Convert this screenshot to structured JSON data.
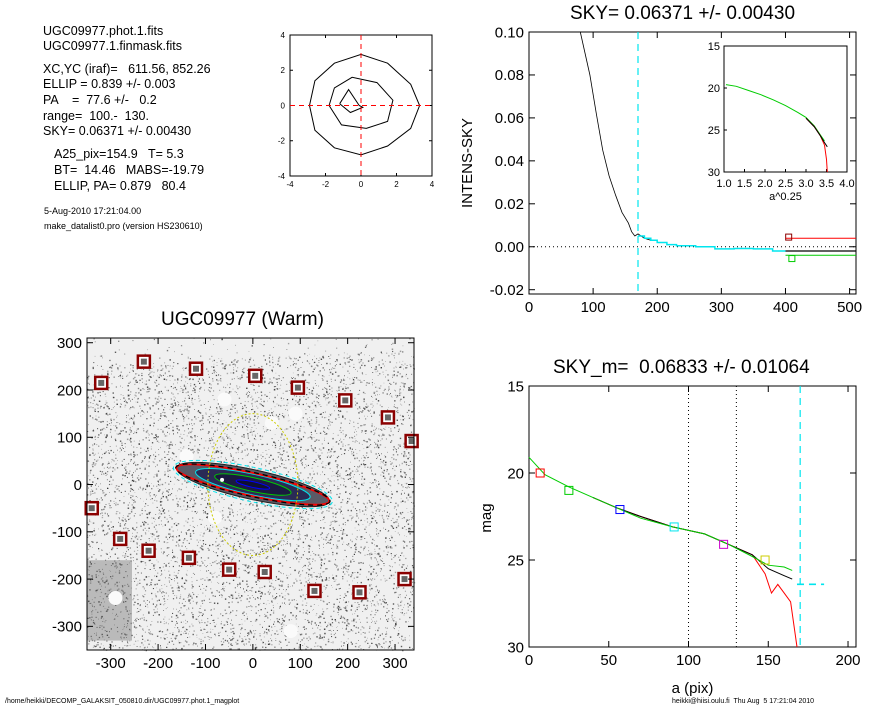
{
  "info": {
    "lines": [
      "UGC09977.phot.1.fits",
      "UGC09977.1.finmask.fits",
      "XC,YC (iraf)=   611.56, 852.26",
      "ELLIP = 0.839 +/- 0.003",
      "PA    =  77.6 +/-   0.2",
      "range=  100.-  130.",
      "SKY= 0.06371 +/- 0.00430",
      "A25_pix=154.9   T= 5.3",
      "BT=  14.46   MABS=-19.79",
      "ELLIP, PA= 0.879   80.4"
    ],
    "timestamp": "5-Aug-2010 17:21:04.00",
    "program": "make_datalist0.pro (version HS230610)"
  },
  "footer": {
    "path": "/home/heikki/DECOMP_GALAKSIT_050810.dir/UGC09977.phot.1_magplot",
    "user": "heikki@hiisi.oulu.fi  Thu Aug  5 17:21:04 2010"
  },
  "colors": {
    "red": "#ff0000",
    "green": "#00cc00",
    "cyan": "#00e5ee",
    "blue": "#0000ff",
    "magenta": "#cc00cc",
    "darkred": "#8b0000",
    "yellow": "#cccc00"
  },
  "chart_data": [
    {
      "id": "contour",
      "type": "line",
      "title": "",
      "xlim": [
        -4,
        4
      ],
      "ylim": [
        -4,
        4
      ],
      "xticks": [
        -4,
        -2,
        0,
        2,
        4
      ],
      "yticks": [
        -4,
        -2,
        0,
        2,
        4
      ],
      "contours": [
        [
          [
            -2.9,
            0
          ],
          [
            -2.6,
            1.4
          ],
          [
            -1.5,
            2.4
          ],
          [
            0,
            2.9
          ],
          [
            1.5,
            2.4
          ],
          [
            2.8,
            1.2
          ],
          [
            3.3,
            0
          ],
          [
            2.8,
            -1.3
          ],
          [
            1.5,
            -2.3
          ],
          [
            0,
            -2.8
          ],
          [
            -1.5,
            -2.4
          ],
          [
            -2.6,
            -1.4
          ],
          [
            -2.9,
            0
          ]
        ],
        [
          [
            -1.8,
            0
          ],
          [
            -1.5,
            1
          ],
          [
            -0.5,
            1.6
          ],
          [
            0.9,
            1.3
          ],
          [
            1.8,
            0.3
          ],
          [
            1.5,
            -0.9
          ],
          [
            0.3,
            -1.3
          ],
          [
            -1.1,
            -1.1
          ],
          [
            -1.8,
            0
          ]
        ],
        [
          [
            -1.2,
            0.1
          ],
          [
            -0.7,
            0.9
          ],
          [
            -0.1,
            0
          ],
          [
            0.1,
            -0.1
          ],
          [
            -0.6,
            -0.4
          ],
          [
            -1.2,
            0.1
          ]
        ]
      ],
      "crosshair": {
        "x": 0,
        "y": 0
      }
    },
    {
      "id": "sky",
      "type": "line",
      "title": "SKY= 0.06371 +/- 0.00430",
      "xlabel": "",
      "ylabel": "INTENS-SKY",
      "xlim": [
        0,
        510
      ],
      "ylim": [
        -0.022,
        0.1
      ],
      "xticks": [
        0,
        100,
        200,
        300,
        400,
        500
      ],
      "yticks": [
        -0.02,
        0,
        0.02,
        0.04,
        0.06,
        0.08,
        0.1
      ],
      "ytick_labels": [
        "-0.02",
        "0.00",
        "0.02",
        "0.04",
        "0.06",
        "0.08",
        "0.10"
      ],
      "vline_x": 170,
      "profile": [
        [
          80,
          0.1
        ],
        [
          95,
          0.08
        ],
        [
          105,
          0.062
        ],
        [
          115,
          0.045
        ],
        [
          125,
          0.033
        ],
        [
          135,
          0.024
        ],
        [
          145,
          0.016
        ],
        [
          155,
          0.011
        ],
        [
          160,
          0.007
        ],
        [
          165,
          0.005
        ],
        [
          170,
          0.006
        ],
        [
          180,
          0.004
        ],
        [
          190,
          0.003
        ]
      ],
      "steps_cyan": [
        [
          170,
          0.005
        ],
        [
          180,
          0.004
        ],
        [
          190,
          0.003
        ],
        [
          200,
          0.002
        ],
        [
          215,
          0.001
        ],
        [
          230,
          0.0005
        ],
        [
          260,
          0
        ],
        [
          290,
          -0.001
        ],
        [
          320,
          -0.0008
        ],
        [
          350,
          -0.001
        ],
        [
          380,
          -0.002
        ],
        [
          400,
          -0.002
        ]
      ],
      "tail_red": [
        [
          400,
          0.004
        ],
        [
          510,
          0.004
        ]
      ],
      "tail_black": [
        [
          400,
          -0.002
        ],
        [
          510,
          -0.002
        ]
      ],
      "tail_green": [
        [
          400,
          -0.004
        ],
        [
          510,
          -0.004
        ]
      ],
      "markers": [
        {
          "x": 405,
          "y": 0.0045,
          "color": "#8b0000"
        },
        {
          "x": 410,
          "y": -0.0055,
          "color": "#00cc00"
        }
      ],
      "inset": {
        "xlabel": "a^0.25",
        "xlim": [
          1.0,
          4.0
        ],
        "ylim": [
          15,
          30
        ],
        "xticks": [
          1.0,
          1.5,
          2.0,
          2.5,
          3.0,
          3.5,
          4.0
        ],
        "xtick_labels": [
          "1.0",
          "1.5",
          "2.0",
          "2.5",
          "3.0",
          "3.5",
          "4.0"
        ],
        "yticks": [
          15,
          20,
          25,
          30
        ],
        "series_green": [
          [
            1.05,
            19.6
          ],
          [
            1.3,
            19.8
          ],
          [
            1.6,
            20.3
          ],
          [
            1.9,
            20.8
          ],
          [
            2.2,
            21.4
          ],
          [
            2.5,
            22.1
          ],
          [
            2.8,
            22.9
          ],
          [
            3.0,
            23.5
          ],
          [
            3.2,
            24.5
          ],
          [
            3.35,
            25.6
          ],
          [
            3.45,
            26.3
          ]
        ],
        "series_red": [
          [
            3.0,
            23.6
          ],
          [
            3.2,
            24.6
          ],
          [
            3.35,
            25.7
          ],
          [
            3.45,
            26.8
          ],
          [
            3.5,
            28.5
          ],
          [
            3.52,
            30
          ]
        ],
        "series_black": [
          [
            3.0,
            23.6
          ],
          [
            3.2,
            24.6
          ],
          [
            3.35,
            25.7
          ],
          [
            3.45,
            26.5
          ],
          [
            3.52,
            27.0
          ]
        ]
      }
    },
    {
      "id": "image",
      "type": "scatter",
      "title": "UGC09977 (Warm)",
      "xlim": [
        -350,
        340
      ],
      "ylim": [
        -350,
        310
      ],
      "xticks": [
        -300,
        -200,
        -100,
        0,
        100,
        200,
        300
      ],
      "yticks": [
        -300,
        -200,
        -100,
        0,
        100,
        200,
        300
      ],
      "mask_boxes": [
        [
          -320,
          215
        ],
        [
          -230,
          260
        ],
        [
          -120,
          245
        ],
        [
          5,
          230
        ],
        [
          95,
          205
        ],
        [
          195,
          178
        ],
        [
          285,
          142
        ],
        [
          335,
          92
        ],
        [
          -340,
          -50
        ],
        [
          -280,
          -115
        ],
        [
          -220,
          -140
        ],
        [
          -135,
          -155
        ],
        [
          -50,
          -180
        ],
        [
          25,
          -185
        ],
        [
          130,
          -225
        ],
        [
          225,
          -228
        ],
        [
          320,
          -200
        ]
      ],
      "ellipse_red": {
        "cx": 0,
        "cy": 0,
        "a": 165,
        "b": 24,
        "angle": -12.4
      },
      "ellipse_yellow": {
        "cx": 0,
        "cy": 0,
        "a": 95,
        "b": 150,
        "angle": 0
      }
    },
    {
      "id": "mag",
      "type": "line",
      "title": "SKY_m=  0.06833 +/- 0.01064",
      "xlabel": "a (pix)",
      "ylabel": "mag",
      "xlim": [
        0,
        205
      ],
      "ylim": [
        15,
        30
      ],
      "xticks": [
        0,
        50,
        100,
        150,
        200
      ],
      "yticks": [
        15,
        20,
        25,
        30
      ],
      "vlines_dotted": [
        100,
        130
      ],
      "vline_cyan": 170,
      "sky_tick": {
        "x1": 168,
        "x2": 185,
        "y": 26.4
      },
      "series_green": [
        [
          0,
          19.1
        ],
        [
          10,
          20.1
        ],
        [
          25,
          20.8
        ],
        [
          40,
          21.4
        ],
        [
          55,
          22.0
        ],
        [
          70,
          22.6
        ],
        [
          90,
          23.1
        ],
        [
          110,
          23.5
        ],
        [
          125,
          24.1
        ],
        [
          140,
          24.8
        ],
        [
          150,
          25.3
        ],
        [
          160,
          25.4
        ],
        [
          165,
          25.6
        ]
      ],
      "series_black": [
        [
          40,
          21.4
        ],
        [
          55,
          22.0
        ],
        [
          70,
          22.5
        ],
        [
          90,
          23.1
        ],
        [
          110,
          23.5
        ],
        [
          125,
          24.1
        ],
        [
          140,
          24.7
        ],
        [
          150,
          25.5
        ],
        [
          160,
          25.9
        ],
        [
          165,
          26.1
        ]
      ],
      "series_red": [
        [
          40,
          21.4
        ],
        [
          55,
          22.0
        ],
        [
          70,
          22.5
        ],
        [
          90,
          23.1
        ],
        [
          110,
          23.5
        ],
        [
          125,
          24.1
        ],
        [
          140,
          24.7
        ],
        [
          148,
          25.8
        ],
        [
          152,
          26.9
        ],
        [
          156,
          26.4
        ],
        [
          160,
          26.9
        ],
        [
          164,
          27.4
        ],
        [
          168,
          30
        ]
      ],
      "markers": [
        {
          "x": 7,
          "y": 20.0,
          "color": "#ff0000"
        },
        {
          "x": 25,
          "y": 21.0,
          "color": "#00cc00"
        },
        {
          "x": 57,
          "y": 22.1,
          "color": "#0000ff"
        },
        {
          "x": 91,
          "y": 23.1,
          "color": "#00e5ee"
        },
        {
          "x": 122,
          "y": 24.1,
          "color": "#cc00cc"
        },
        {
          "x": 148,
          "y": 25.0,
          "color": "#cccc00"
        }
      ]
    }
  ]
}
